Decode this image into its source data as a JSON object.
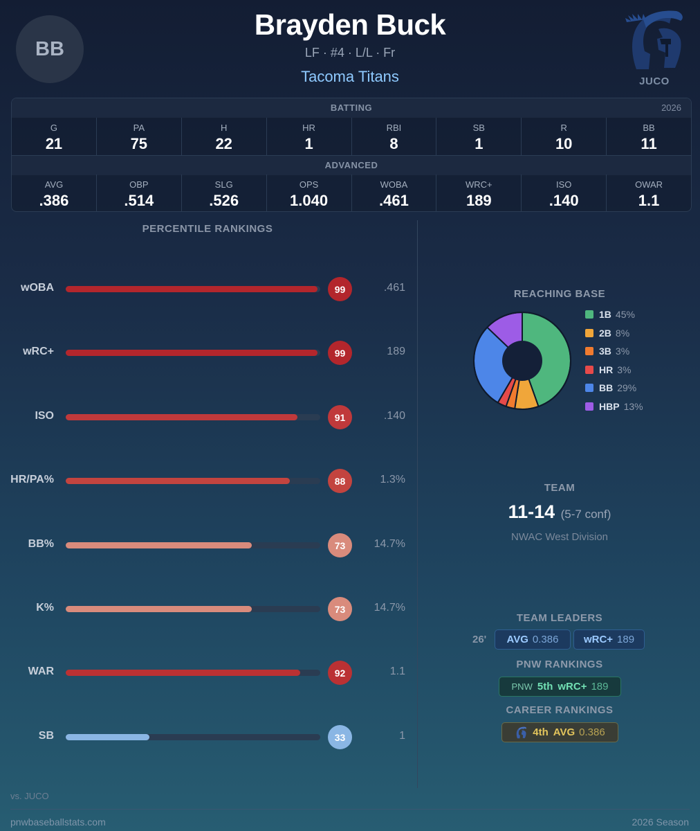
{
  "player": {
    "initials": "BB",
    "name": "Brayden Buck",
    "meta": "LF · #4 · L/L · Fr",
    "team": "Tacoma Titans",
    "level": "JUCO"
  },
  "batting": {
    "title": "BATTING",
    "year": "2026",
    "stats": [
      {
        "label": "G",
        "value": "21"
      },
      {
        "label": "PA",
        "value": "75"
      },
      {
        "label": "H",
        "value": "22"
      },
      {
        "label": "HR",
        "value": "1"
      },
      {
        "label": "RBI",
        "value": "8"
      },
      {
        "label": "SB",
        "value": "1"
      },
      {
        "label": "R",
        "value": "10"
      },
      {
        "label": "BB",
        "value": "11"
      }
    ]
  },
  "advanced": {
    "title": "ADVANCED",
    "stats": [
      {
        "label": "AVG",
        "value": ".386"
      },
      {
        "label": "OBP",
        "value": ".514"
      },
      {
        "label": "SLG",
        "value": ".526"
      },
      {
        "label": "OPS",
        "value": "1.040"
      },
      {
        "label": "WOBA",
        "value": ".461"
      },
      {
        "label": "WRC+",
        "value": "189"
      },
      {
        "label": "ISO",
        "value": ".140"
      },
      {
        "label": "OWAR",
        "value": "1.1"
      }
    ]
  },
  "percentiles": {
    "title": "PERCENTILE RANKINGS",
    "footnote": "vs. JUCO",
    "rows": [
      {
        "label": "wOBA",
        "pct": 99,
        "value": ".461",
        "color": "#b3262c"
      },
      {
        "label": "wRC+",
        "pct": 99,
        "value": "189",
        "color": "#b3262c"
      },
      {
        "label": "ISO",
        "pct": 91,
        "value": ".140",
        "color": "#c0393b"
      },
      {
        "label": "HR/PA%",
        "pct": 88,
        "value": "1.3%",
        "color": "#c3443f"
      },
      {
        "label": "BB%",
        "pct": 73,
        "value": "14.7%",
        "color": "#d98b7c"
      },
      {
        "label": "K%",
        "pct": 73,
        "value": "14.7%",
        "color": "#d98b7c"
      },
      {
        "label": "WAR",
        "pct": 92,
        "value": "1.1",
        "color": "#bb3133"
      },
      {
        "label": "SB",
        "pct": 33,
        "value": "1",
        "color": "#8ab6e4"
      }
    ]
  },
  "reaching_base": {
    "title": "REACHING BASE",
    "slices": [
      {
        "name": "1B",
        "pct": 45,
        "label": "45%",
        "color": "#4fb77e"
      },
      {
        "name": "2B",
        "pct": 8,
        "label": "8%",
        "color": "#f0a63a"
      },
      {
        "name": "3B",
        "pct": 3,
        "label": "3%",
        "color": "#f07b2f"
      },
      {
        "name": "HR",
        "pct": 3,
        "label": "3%",
        "color": "#e64a4a"
      },
      {
        "name": "BB",
        "pct": 29,
        "label": "29%",
        "color": "#4d86e8"
      },
      {
        "name": "HBP",
        "pct": 13,
        "label": "13%",
        "color": "#9d5ce6"
      }
    ]
  },
  "team": {
    "title": "TEAM",
    "record": "11-14",
    "conf_record": "(5-7 conf)",
    "division": "NWAC West Division"
  },
  "team_leaders": {
    "title": "TEAM LEADERS",
    "year": "26'",
    "items": [
      {
        "stat": "AVG",
        "value": "0.386"
      },
      {
        "stat": "wRC+",
        "value": "189"
      }
    ]
  },
  "pnw_rankings": {
    "title": "PNW RANKINGS",
    "prefix": "PNW",
    "rank": "5th",
    "stat": "wRC+",
    "value": "189"
  },
  "career_rankings": {
    "title": "CAREER RANKINGS",
    "rank": "4th",
    "stat": "AVG",
    "value": "0.386"
  },
  "footer": {
    "site": "pnwbaseballstats.com",
    "season": "2026 Season"
  }
}
